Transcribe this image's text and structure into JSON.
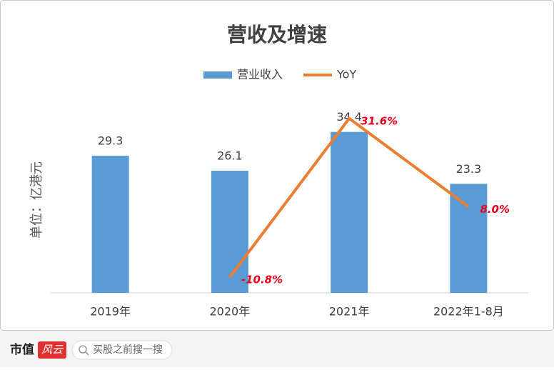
{
  "chart_data": {
    "type": "bar",
    "title": "营收及增速",
    "y_label": "单位：亿港元",
    "categories": [
      "2019年",
      "2020年",
      "2021年",
      "2022年1-8月"
    ],
    "series": [
      {
        "name": "营业收入",
        "type": "bar",
        "color": "#5b9bd5",
        "values": [
          29.3,
          26.1,
          34.4,
          23.3
        ]
      },
      {
        "name": "YoY",
        "type": "line",
        "axis": "y2",
        "color": "#ed7d31",
        "values": [
          null,
          -10.8,
          31.6,
          8.0
        ],
        "value_labels": [
          null,
          "-10.8%",
          "31.6%",
          "8.0%"
        ],
        "label_color": "#e8001c"
      }
    ],
    "ylim": [
      0,
      40
    ],
    "y2lim": [
      -15,
      35
    ],
    "legend": "top"
  },
  "footer": {
    "brand": "市值",
    "logo": "风云",
    "search": "买股之前搜一搜"
  }
}
